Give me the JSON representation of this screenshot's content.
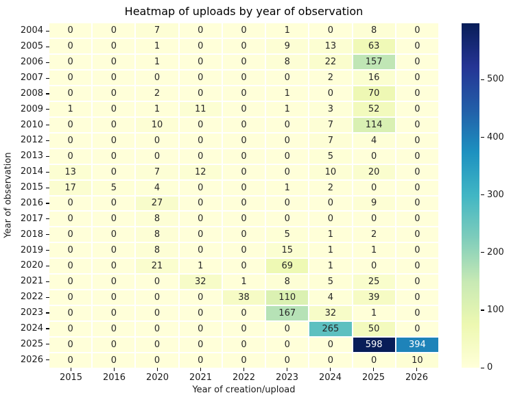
{
  "chart_data": {
    "type": "heatmap",
    "title": "Heatmap of uploads by year of observation",
    "xlabel": "Year of creation/upload",
    "ylabel": "Year of observation",
    "x_categories": [
      "2015",
      "2016",
      "2020",
      "2021",
      "2022",
      "2023",
      "2024",
      "2025",
      "2026"
    ],
    "y_categories": [
      "2004",
      "2005",
      "2006",
      "2007",
      "2008",
      "2009",
      "2010",
      "2012",
      "2013",
      "2014",
      "2015",
      "2016",
      "2017",
      "2018",
      "2019",
      "2020",
      "2021",
      "2022",
      "2023",
      "2024",
      "2025",
      "2026"
    ],
    "values": [
      [
        0,
        0,
        7,
        0,
        0,
        1,
        0,
        8,
        0
      ],
      [
        0,
        0,
        1,
        0,
        0,
        9,
        13,
        63,
        0
      ],
      [
        0,
        0,
        1,
        0,
        0,
        8,
        22,
        157,
        0
      ],
      [
        0,
        0,
        0,
        0,
        0,
        0,
        2,
        16,
        0
      ],
      [
        0,
        0,
        2,
        0,
        0,
        1,
        0,
        70,
        0
      ],
      [
        1,
        0,
        1,
        11,
        0,
        1,
        3,
        52,
        0
      ],
      [
        0,
        0,
        10,
        0,
        0,
        0,
        7,
        114,
        0
      ],
      [
        0,
        0,
        0,
        0,
        0,
        0,
        7,
        4,
        0
      ],
      [
        0,
        0,
        0,
        0,
        0,
        0,
        5,
        0,
        0
      ],
      [
        13,
        0,
        7,
        12,
        0,
        0,
        10,
        20,
        0
      ],
      [
        17,
        5,
        4,
        0,
        0,
        1,
        2,
        0,
        0
      ],
      [
        0,
        0,
        27,
        0,
        0,
        0,
        0,
        9,
        0
      ],
      [
        0,
        0,
        8,
        0,
        0,
        0,
        0,
        0,
        0
      ],
      [
        0,
        0,
        8,
        0,
        0,
        5,
        1,
        2,
        0
      ],
      [
        0,
        0,
        8,
        0,
        0,
        15,
        1,
        1,
        0
      ],
      [
        0,
        0,
        21,
        1,
        0,
        69,
        1,
        0,
        0
      ],
      [
        0,
        0,
        0,
        32,
        1,
        8,
        5,
        25,
        0
      ],
      [
        0,
        0,
        0,
        0,
        38,
        110,
        4,
        39,
        0
      ],
      [
        0,
        0,
        0,
        0,
        0,
        167,
        32,
        1,
        0
      ],
      [
        0,
        0,
        0,
        0,
        0,
        0,
        265,
        50,
        0
      ],
      [
        0,
        0,
        0,
        0,
        0,
        0,
        0,
        598,
        394
      ],
      [
        0,
        0,
        0,
        0,
        0,
        0,
        0,
        0,
        10
      ]
    ],
    "annotated": true,
    "vmin": 0,
    "vmax": 598,
    "colormap": "YlGnBu",
    "colormap_stops": [
      "#ffffd9",
      "#edf8b1",
      "#c7e9b4",
      "#7fcdbb",
      "#41b6c4",
      "#1d91c0",
      "#225ea8",
      "#253494",
      "#081d58"
    ],
    "colorbar_ticks": [
      0,
      100,
      200,
      300,
      400,
      500
    ],
    "colorbar_position": "right",
    "annotation_color_dark": "#262626",
    "annotation_color_light": "#ffffff",
    "background": "#ffffff",
    "cell_gap_color": "#ffffff"
  }
}
